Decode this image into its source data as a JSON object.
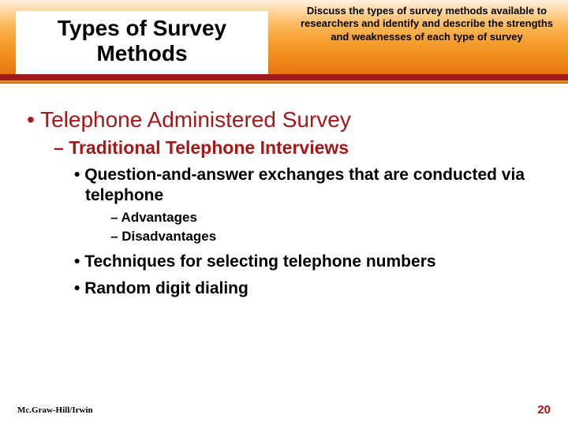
{
  "header": {
    "title": "Types of Survey Methods",
    "objective": "Discuss the types of survey methods available to researchers and identify and describe the strengths and weaknesses of each type of survey",
    "gradient_top": "#fff0e0",
    "gradient_bottom": "#df6a0c",
    "redbar_color": "#a21919",
    "yellowline_color": "#c9a227"
  },
  "bullets": {
    "l1": "Telephone Administered Survey",
    "l2": "Traditional Telephone Interviews",
    "l3": "Question-and-answer exchanges that are conducted via telephone",
    "l4a": "Advantages",
    "l4b": "Disadvantages",
    "l3b1": "Techniques for selecting telephone numbers",
    "l3b2": "Random digit dialing"
  },
  "footer": {
    "publisher": "Mc.Graw-Hill/Irwin",
    "page": "20"
  },
  "colors": {
    "accent_red": "#a21919",
    "text_black": "#000000",
    "background": "#ffffff"
  },
  "typography": {
    "title_fontsize": 28,
    "objective_fontsize": 13,
    "l1_fontsize": 28,
    "l2_fontsize": 23,
    "l3_fontsize": 21,
    "l4_fontsize": 17,
    "footer_fontsize": 11,
    "pagenum_fontsize": 15
  },
  "bullet_markers": {
    "l1": "•  ",
    "l2": "– ",
    "l3": "• ",
    "l4": "– "
  }
}
